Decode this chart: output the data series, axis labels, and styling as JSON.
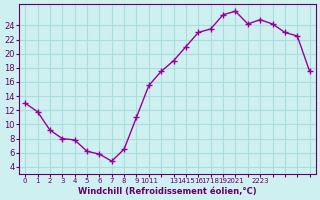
{
  "xlabel": "Windchill (Refroidissement éolien,°C)",
  "bg_color": "#cff0f0",
  "grid_color": "#aadddd",
  "line_color": "#990099",
  "marker_color": "#990099",
  "all_hours": [
    0,
    1,
    2,
    3,
    4,
    5,
    6,
    7,
    8,
    9,
    10,
    11,
    12,
    13,
    14,
    15,
    16,
    17,
    18,
    19,
    20,
    21,
    22,
    23
  ],
  "all_values": [
    13.0,
    11.8,
    9.2,
    8.0,
    7.8,
    6.2,
    5.8,
    4.8,
    6.5,
    11.0,
    15.5,
    17.5,
    19.0,
    21.0,
    23.0,
    23.5,
    25.5,
    26.0,
    24.2,
    24.8,
    24.2,
    23.0,
    22.5,
    17.5
  ],
  "ylim": [
    3,
    27
  ],
  "yticks": [
    4,
    6,
    8,
    10,
    12,
    14,
    16,
    18,
    20,
    22,
    24
  ],
  "xlim": [
    -0.5,
    23.5
  ],
  "tick_color": "#660066",
  "xtick_labels": [
    "0",
    "1",
    "2",
    "3",
    "4",
    "5",
    "6",
    "7",
    "8",
    "9",
    "1011",
    "",
    "13",
    "1415",
    "16",
    "1718",
    "19",
    "2021",
    "",
    "2223",
    "",
    "",
    "",
    ""
  ]
}
